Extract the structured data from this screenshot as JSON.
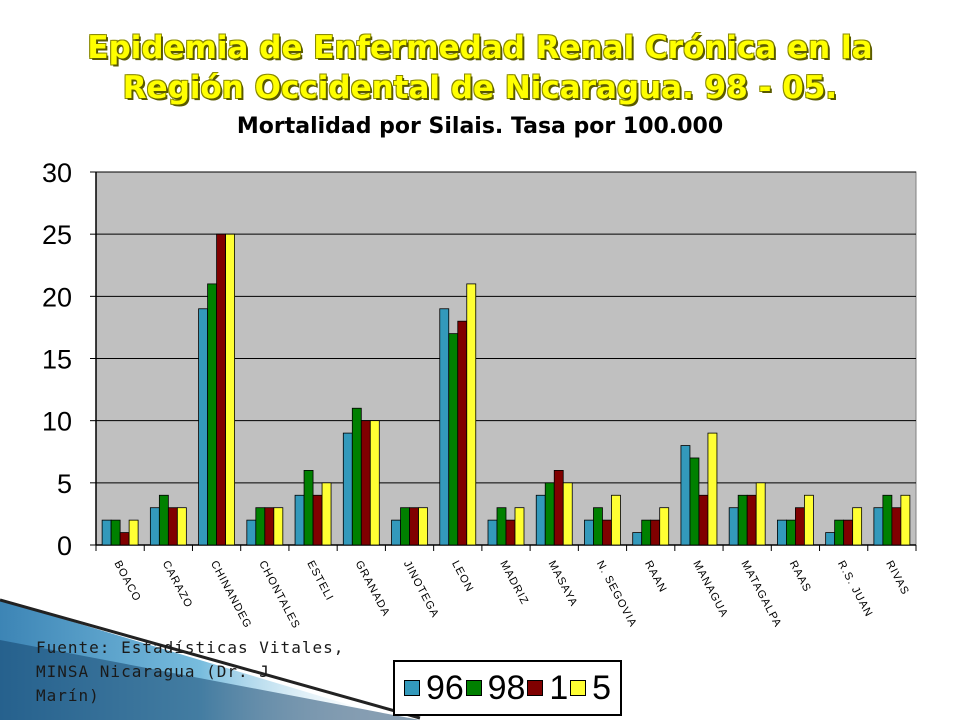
{
  "title": {
    "line1": "Epidemia de Enfermedad Renal Crónica en la",
    "line2": "Región Occidental de Nicaragua. 98 - 05.",
    "subtitle": "Mortalidad por Silais. Tasa por 100.000"
  },
  "footer": {
    "line1": "Fuente: Estadísticas Vitales,",
    "line2": "MINSA Nicaragua (Dr. J",
    "line3": "Marín)"
  },
  "colors": {
    "s96": "#3399bb",
    "s98": "#008000",
    "s1": "#800000",
    "s5": "#ffff33",
    "plot_bg": "#c0c0c0"
  },
  "chart_data": {
    "type": "bar",
    "title": "Mortalidad por Silais. Tasa por 100.000",
    "xlabel": "",
    "ylabel": "",
    "ylim": [
      0,
      30
    ],
    "yticks": [
      0,
      5,
      10,
      15,
      20,
      25,
      30
    ],
    "grid": true,
    "legend_position": "bottom",
    "categories": [
      "BOACO",
      "CARAZO",
      "CHINANDEG",
      "CHONTALES",
      "ESTELI",
      "GRANADA",
      "JINOTEGA",
      "LEON",
      "MADRIZ",
      "MASAYA",
      "N. SEGOVIA",
      "RAAN",
      "MANAGUA",
      "MATAGALPA",
      "RAAS",
      "R.S. JUAN",
      "RIVAS"
    ],
    "series": [
      {
        "name": "96",
        "values": [
          2,
          3,
          19,
          2,
          4,
          9,
          2,
          19,
          2,
          4,
          2,
          1,
          8,
          3,
          2,
          1,
          3
        ]
      },
      {
        "name": "98",
        "values": [
          2,
          4,
          21,
          3,
          6,
          11,
          3,
          17,
          3,
          5,
          3,
          2,
          7,
          4,
          2,
          2,
          4
        ]
      },
      {
        "name": "1",
        "values": [
          1,
          3,
          25,
          3,
          4,
          10,
          3,
          18,
          2,
          6,
          2,
          2,
          4,
          4,
          3,
          2,
          3
        ]
      },
      {
        "name": "5",
        "values": [
          2,
          3,
          25,
          3,
          5,
          10,
          3,
          21,
          3,
          5,
          4,
          3,
          9,
          5,
          4,
          3,
          4
        ]
      }
    ]
  }
}
